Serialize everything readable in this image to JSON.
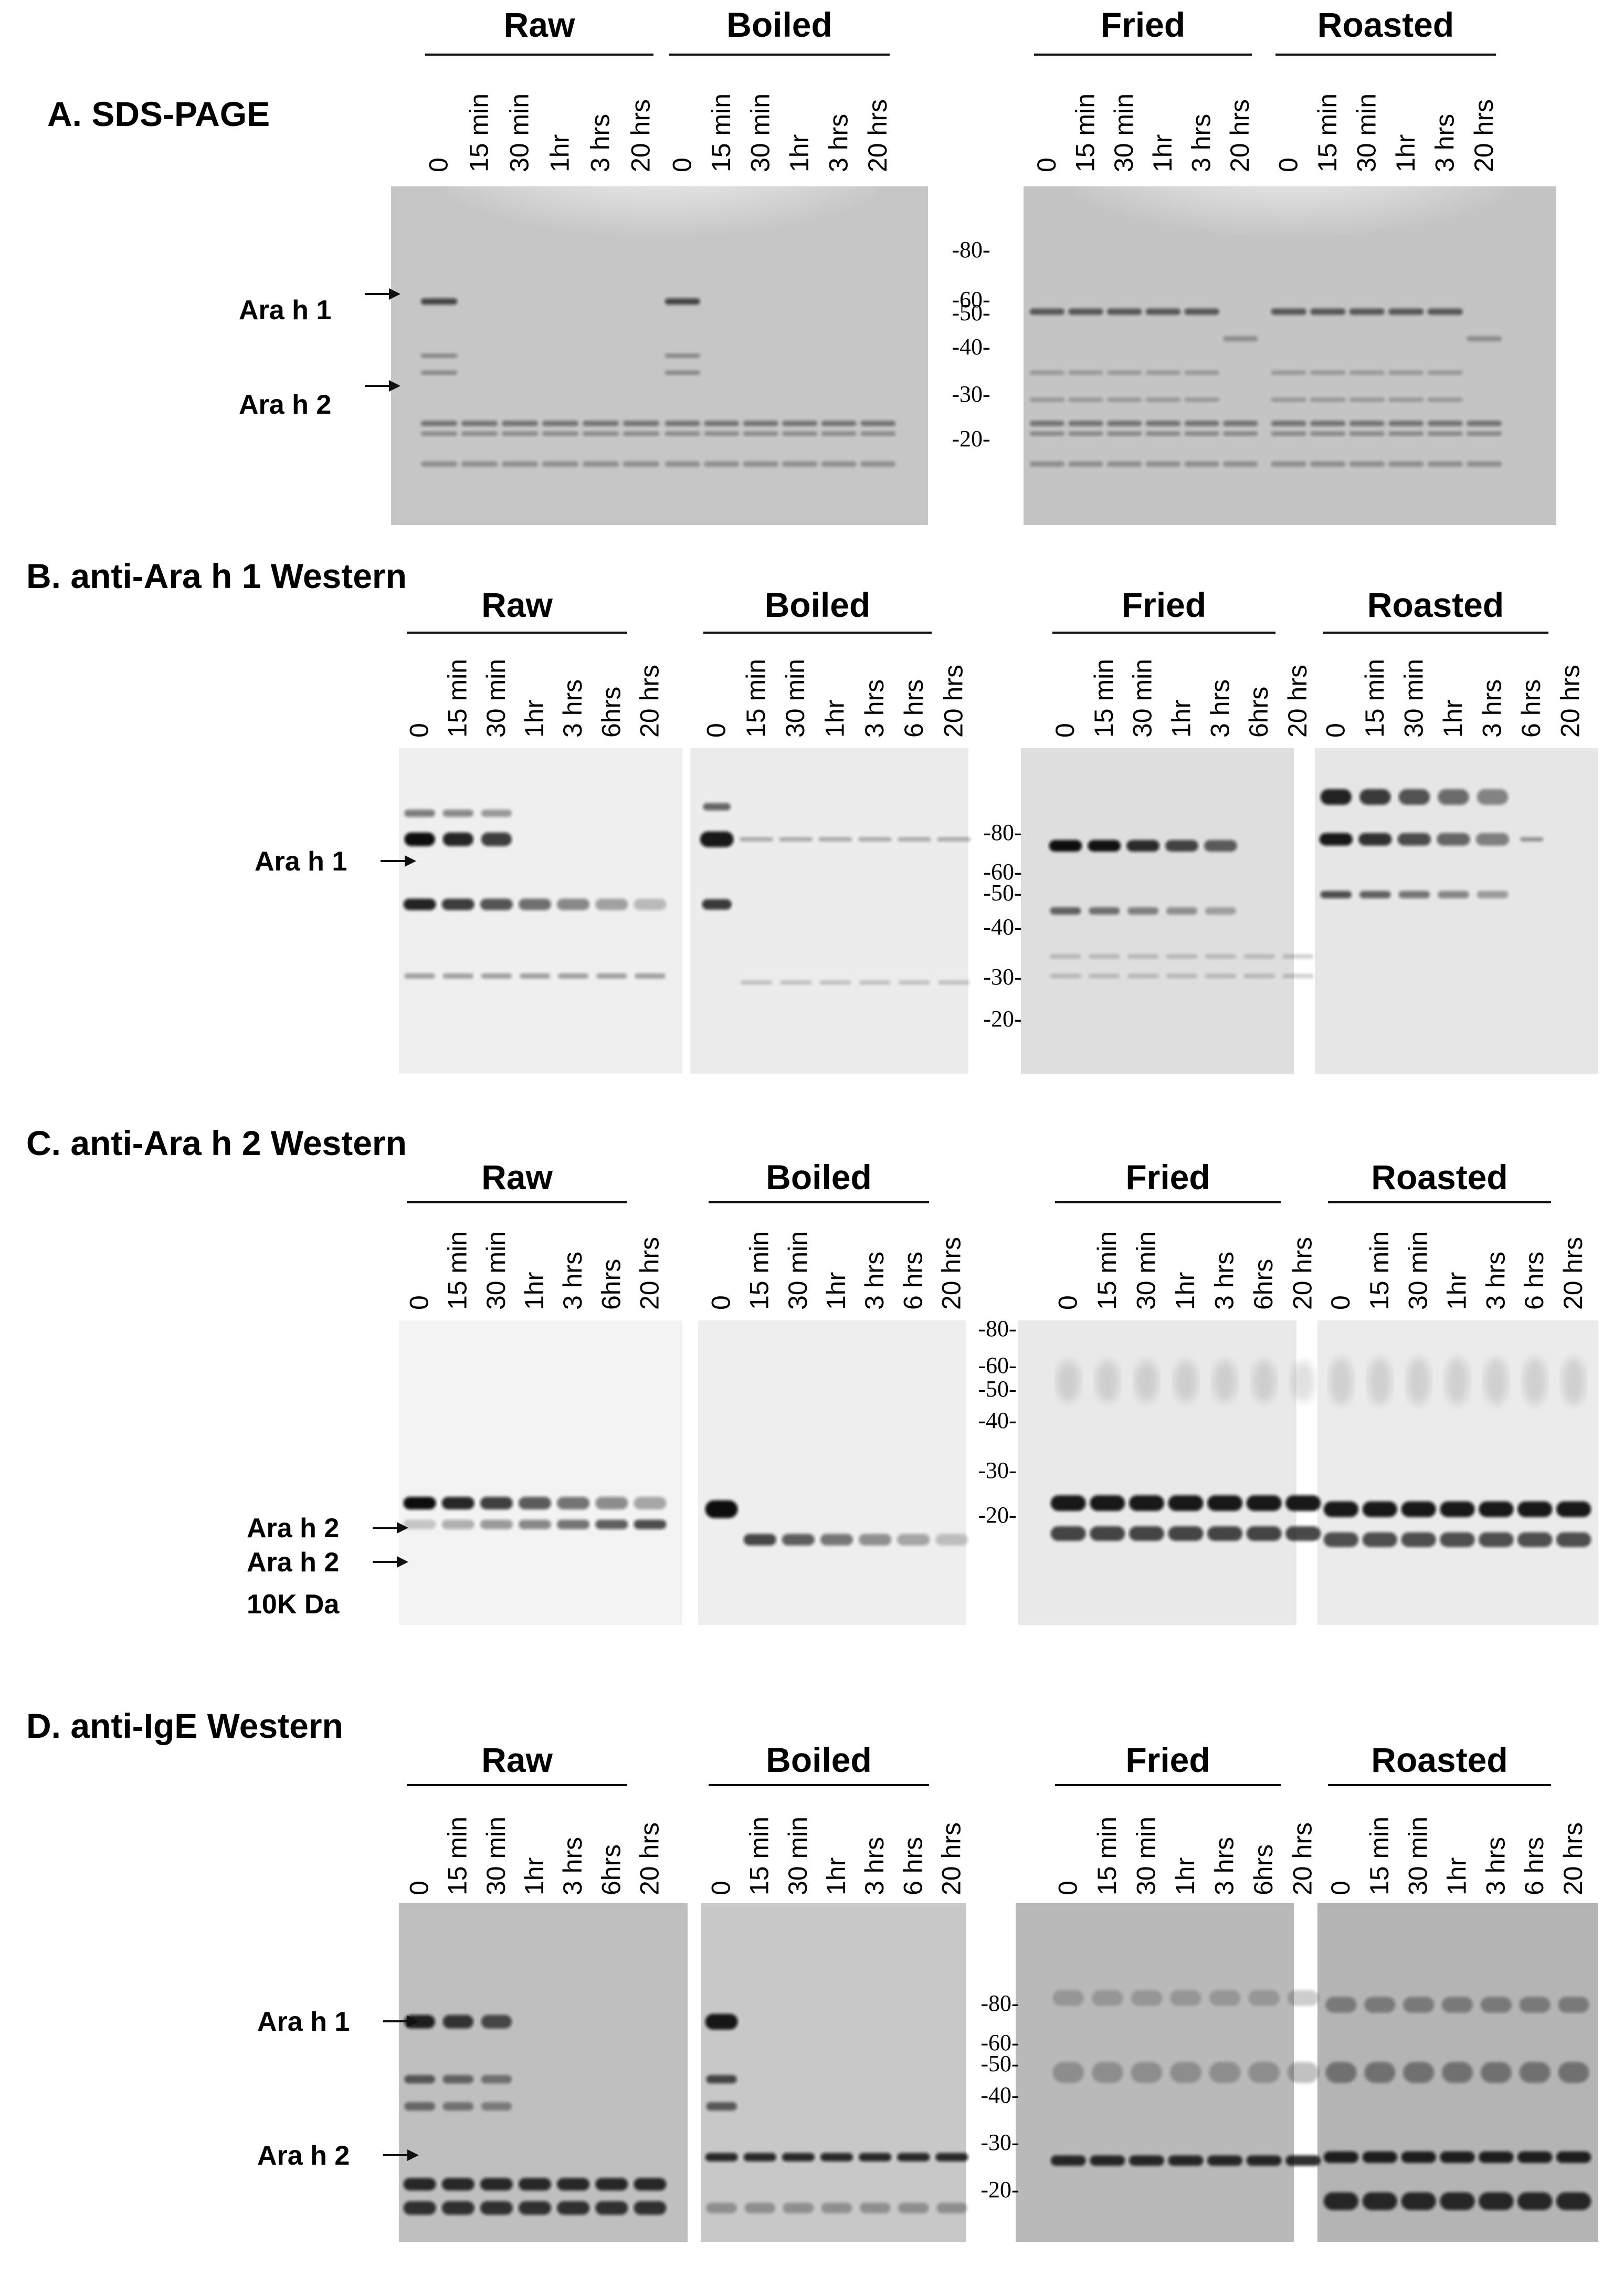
{
  "panels": [
    {
      "title": "A. SDS-PAGE",
      "groups": [
        {
          "name": "Raw",
          "lanes": [
            "0",
            "15 min",
            "30 min",
            "1hr",
            "3 hrs",
            "20 hrs"
          ]
        },
        {
          "name": "Boiled",
          "lanes": [
            "0",
            "15 min",
            "30 min",
            "1hr",
            "3 hrs",
            "20 hrs"
          ]
        },
        {
          "name": "Fried",
          "lanes": [
            "0",
            "15 min",
            "30 min",
            "1hr",
            "3 hrs",
            "20 hrs"
          ]
        },
        {
          "name": "Roasted",
          "lanes": [
            "0",
            "15 min",
            "30 min",
            "1hr",
            "3 hrs",
            "20 hrs"
          ]
        }
      ],
      "markers": [
        "-80-",
        "-60-",
        "-50-",
        "-40-",
        "-30-",
        "-20-"
      ],
      "band_labels": [
        "Ara h 1",
        "Ara h 2"
      ]
    },
    {
      "title": "B. anti-Ara h 1 Western",
      "groups": [
        {
          "name": "Raw",
          "lanes": [
            "0",
            "15 min",
            "30 min",
            "1hr",
            "3 hrs",
            "6hrs",
            "20 hrs"
          ]
        },
        {
          "name": "Boiled",
          "lanes": [
            "0",
            "15 min",
            "30 min",
            "1hr",
            "3 hrs",
            "6 hrs",
            "20 hrs"
          ]
        },
        {
          "name": "Fried",
          "lanes": [
            "0",
            "15 min",
            "30 min",
            "1hr",
            "3 hrs",
            "6hrs",
            "20 hrs"
          ]
        },
        {
          "name": "Roasted",
          "lanes": [
            "0",
            "15 min",
            "30 min",
            "1hr",
            "3 hrs",
            "6 hrs",
            "20 hrs"
          ]
        }
      ],
      "markers": [
        "-80-",
        "-60-",
        "-50-",
        "-40-",
        "-30-",
        "-20-"
      ],
      "band_labels": [
        "Ara h 1"
      ]
    },
    {
      "title": "C. anti-Ara h 2 Western",
      "groups": [
        {
          "name": "Raw",
          "lanes": [
            "0",
            "15 min",
            "30 min",
            "1hr",
            "3 hrs",
            "6hrs",
            "20 hrs"
          ]
        },
        {
          "name": "Boiled",
          "lanes": [
            "0",
            "15 min",
            "30 min",
            "1hr",
            "3 hrs",
            "6 hrs",
            "20 hrs"
          ]
        },
        {
          "name": "Fried",
          "lanes": [
            "0",
            "15 min",
            "30 min",
            "1hr",
            "3 hrs",
            "6hrs",
            "20 hrs"
          ]
        },
        {
          "name": "Roasted",
          "lanes": [
            "0",
            "15 min",
            "30 min",
            "1hr",
            "3 hrs",
            "6 hrs",
            "20 hrs"
          ]
        }
      ],
      "markers": [
        "-80-",
        "-60-",
        "-50-",
        "-40-",
        "-30-",
        "-20-"
      ],
      "band_labels": [
        "Ara h 2",
        "Ara h 2",
        "10K Da"
      ]
    },
    {
      "title": "D. anti-IgE Western",
      "groups": [
        {
          "name": "Raw",
          "lanes": [
            "0",
            "15 min",
            "30 min",
            "1hr",
            "3 hrs",
            "6hrs",
            "20 hrs"
          ]
        },
        {
          "name": "Boiled",
          "lanes": [
            "0",
            "15 min",
            "30 min",
            "1hr",
            "3 hrs",
            "6 hrs",
            "20 hrs"
          ]
        },
        {
          "name": "Fried",
          "lanes": [
            "0",
            "15 min",
            "30 min",
            "1hr",
            "3 hrs",
            "6hrs",
            "20 hrs"
          ]
        },
        {
          "name": "Roasted",
          "lanes": [
            "0",
            "15 min",
            "30 min",
            "1hr",
            "3 hrs",
            "6 hrs",
            "20 hrs"
          ]
        }
      ],
      "markers": [
        "-80-",
        "-60-",
        "-50-",
        "-40-",
        "-30-",
        "-20-"
      ],
      "band_labels": [
        "Ara h 1",
        "Ara h 2"
      ]
    }
  ]
}
